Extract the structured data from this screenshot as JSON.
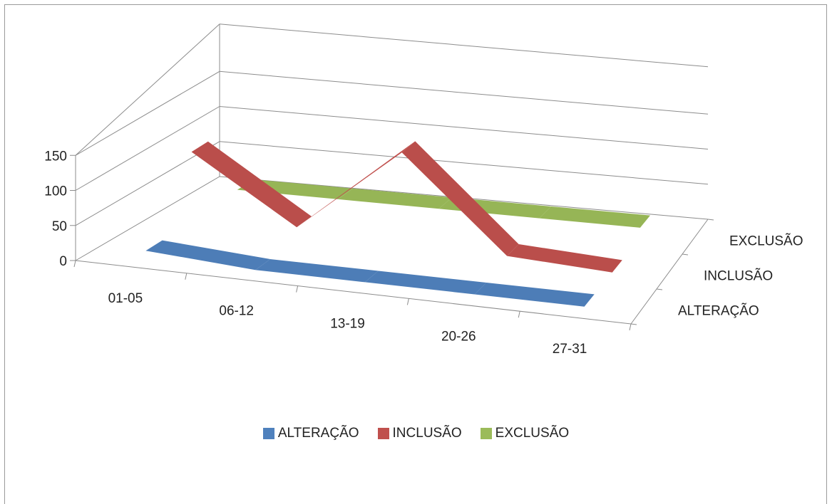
{
  "chart_data": {
    "type": "line",
    "style": "3d-ribbon",
    "categories": [
      "01-05",
      "06-12",
      "13-19",
      "20-26",
      "27-31"
    ],
    "series": [
      {
        "name": "ALTERAÇÃO",
        "values": [
          10,
          0,
          0,
          0,
          0
        ],
        "color": "#4f81bd"
      },
      {
        "name": "INCLUSÃO",
        "values": [
          110,
          18,
          140,
          8,
          0
        ],
        "color": "#c0504d"
      },
      {
        "name": "EXCLUSÃO",
        "values": [
          15,
          15,
          15,
          15,
          15
        ],
        "color": "#9bbb59"
      }
    ],
    "y_ticks": [
      "0",
      "50",
      "100",
      "150"
    ],
    "depth_labels": [
      "ALTERAÇÃO",
      "INCLUSÃO",
      "EXCLUSÃO"
    ],
    "ylim": [
      0,
      150
    ],
    "title": "",
    "xlabel": "",
    "ylabel": "",
    "grid": true,
    "legend_position": "bottom"
  }
}
